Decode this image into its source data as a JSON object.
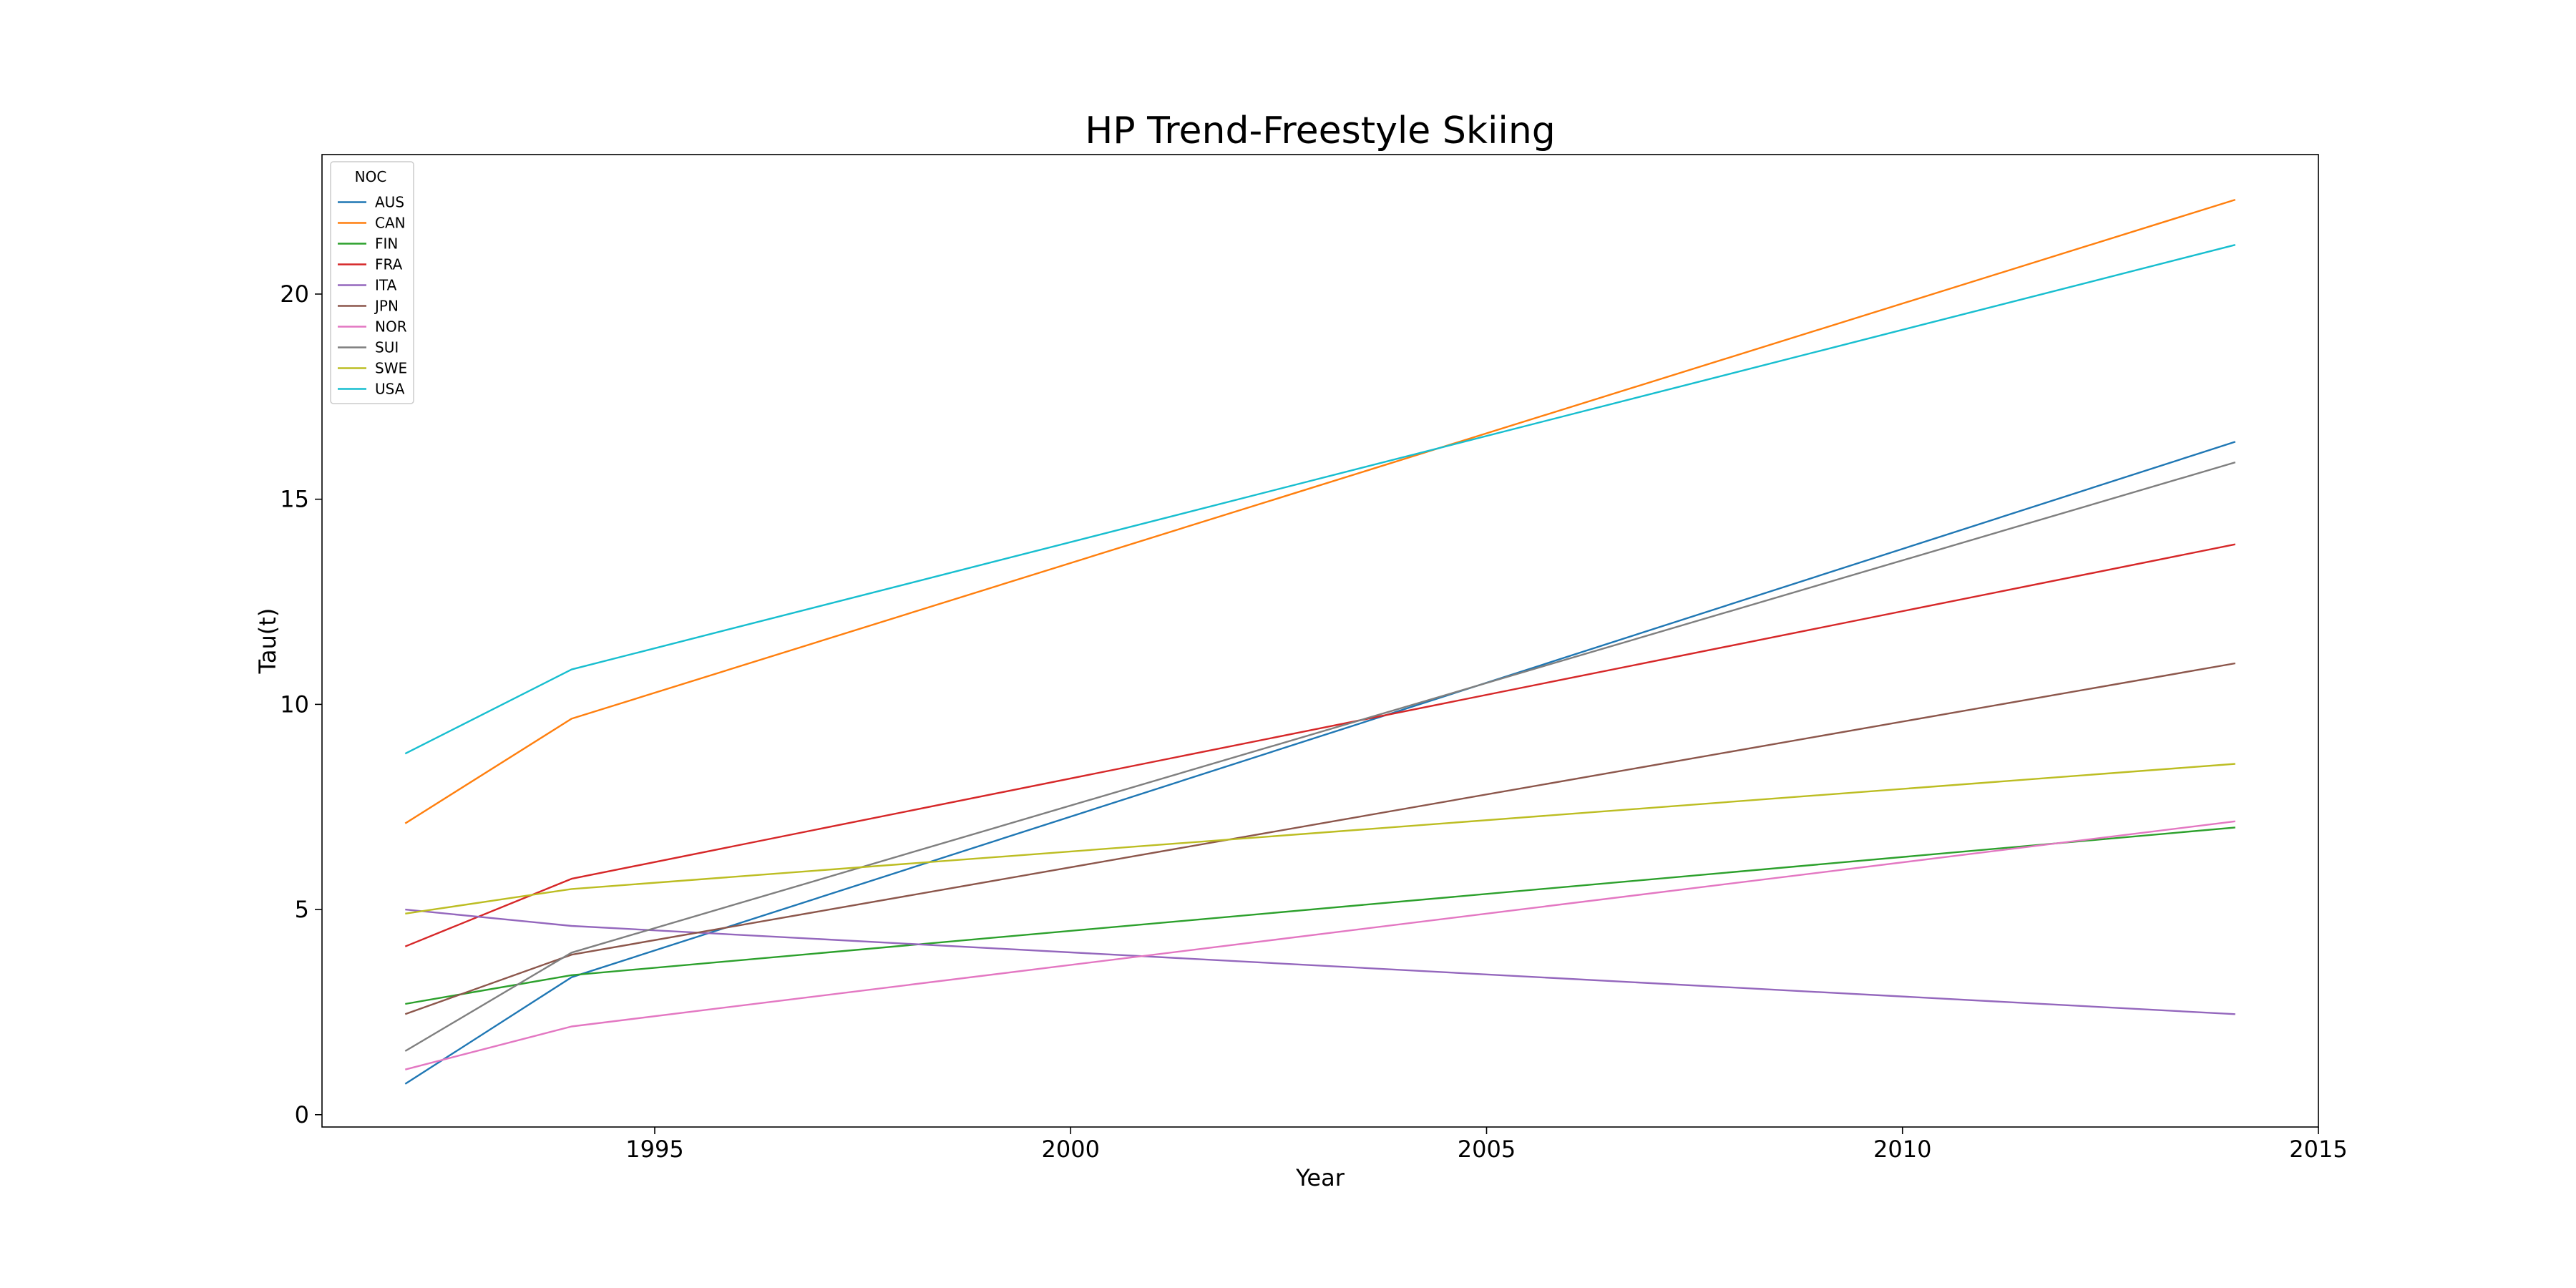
{
  "chart_data": {
    "type": "line",
    "title": "HP Trend-Freestyle Skiing",
    "xlabel": "Year",
    "ylabel": "Tau(t)",
    "xlim": [
      1991,
      2015
    ],
    "ylim": [
      -0.3,
      23.4
    ],
    "xticks": [
      1995,
      2000,
      2005,
      2010,
      2015
    ],
    "yticks": [
      0,
      5,
      10,
      15,
      20
    ],
    "grid": false,
    "legend": {
      "title": "NOC",
      "placement": "top-left"
    },
    "x": [
      1992,
      1994,
      2014
    ],
    "series": [
      {
        "name": "AUS",
        "color": "#1f77b4",
        "values": [
          0.75,
          3.35,
          16.4
        ]
      },
      {
        "name": "CAN",
        "color": "#ff7f0e",
        "values": [
          7.1,
          9.65,
          22.3
        ]
      },
      {
        "name": "FIN",
        "color": "#2ca02c",
        "values": [
          2.7,
          3.4,
          7.0
        ]
      },
      {
        "name": "FRA",
        "color": "#d62728",
        "values": [
          4.1,
          5.75,
          13.9
        ]
      },
      {
        "name": "ITA",
        "color": "#9467bd",
        "values": [
          5.0,
          4.6,
          2.45
        ]
      },
      {
        "name": "JPN",
        "color": "#8c564b",
        "values": [
          2.45,
          3.9,
          11.0
        ]
      },
      {
        "name": "NOR",
        "color": "#e377c2",
        "values": [
          1.1,
          2.15,
          7.15
        ]
      },
      {
        "name": "SUI",
        "color": "#7f7f7f",
        "values": [
          1.55,
          3.95,
          15.9
        ]
      },
      {
        "name": "SWE",
        "color": "#bcbd22",
        "values": [
          4.9,
          5.5,
          8.55
        ]
      },
      {
        "name": "USA",
        "color": "#17becf",
        "values": [
          8.8,
          10.85,
          21.2
        ]
      }
    ]
  }
}
